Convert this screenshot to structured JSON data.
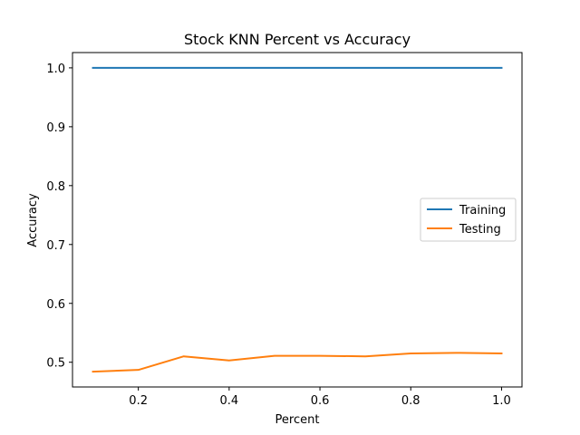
{
  "chart_data": {
    "type": "line",
    "title": "Stock KNN Percent vs Accuracy",
    "xlabel": "Percent",
    "ylabel": "Accuracy",
    "x": [
      0.1,
      0.2,
      0.3,
      0.4,
      0.5,
      0.6,
      0.7,
      0.8,
      0.9,
      1.0
    ],
    "series": [
      {
        "name": "Training",
        "color": "#1f77b4",
        "values": [
          1.0,
          1.0,
          1.0,
          1.0,
          1.0,
          1.0,
          1.0,
          1.0,
          1.0,
          1.0
        ]
      },
      {
        "name": "Testing",
        "color": "#ff7f0e",
        "values": [
          0.484,
          0.487,
          0.51,
          0.503,
          0.511,
          0.511,
          0.51,
          0.515,
          0.516,
          0.515
        ]
      }
    ],
    "xlim": [
      0.055,
      1.045
    ],
    "ylim": [
      0.458,
      1.026
    ],
    "xticks": [
      0.2,
      0.4,
      0.6,
      0.8,
      1.0
    ],
    "xtick_labels": [
      "0.2",
      "0.4",
      "0.6",
      "0.8",
      "1.0"
    ],
    "yticks": [
      0.5,
      0.6,
      0.7,
      0.8,
      0.9,
      1.0
    ],
    "ytick_labels": [
      "0.5",
      "0.6",
      "0.7",
      "0.8",
      "0.9",
      "1.0"
    ],
    "grid": false,
    "legend_position": "center-right"
  }
}
